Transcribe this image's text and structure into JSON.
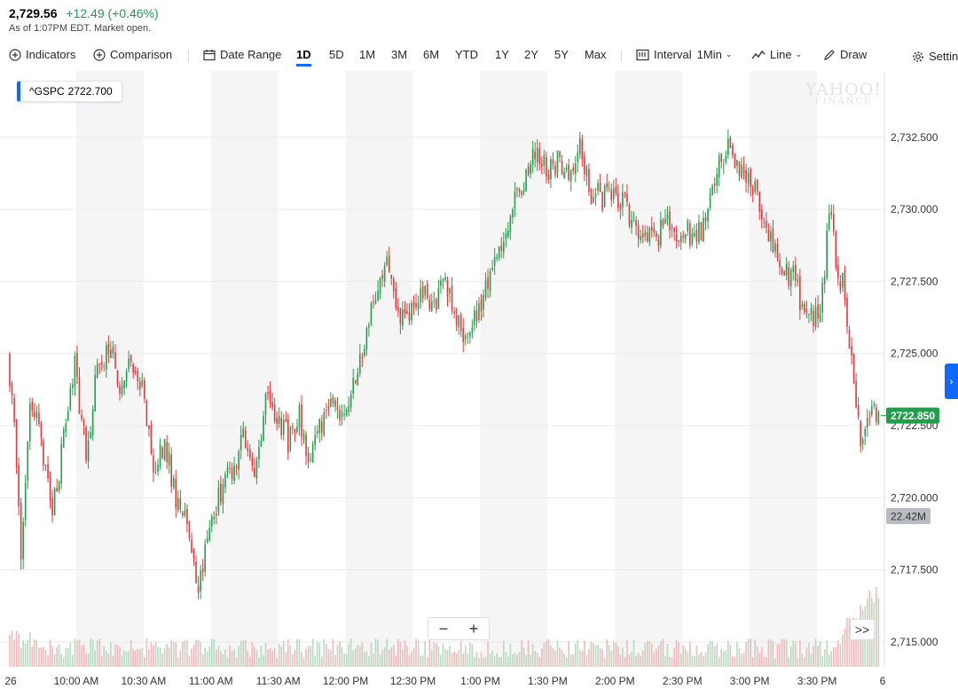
{
  "quote": {
    "price": "2,729.56",
    "change": "+12.49 (+0.46%)",
    "as_of": "As of 1:07PM EDT. Market open."
  },
  "toolbar": {
    "indicators": "Indicators",
    "comparison": "Comparison",
    "date_range": "Date Range",
    "ranges": [
      "1D",
      "5D",
      "1M",
      "3M",
      "6M",
      "YTD",
      "1Y",
      "2Y",
      "5Y",
      "Max"
    ],
    "active_range": "1D",
    "interval_label": "Interval",
    "interval_value": "1Min",
    "chart_type": "Line",
    "draw": "Draw",
    "settings": "Settings"
  },
  "legend": {
    "symbol": "^GSPC",
    "value": "2722.700"
  },
  "watermark": {
    "line1": "YAHOO!",
    "line2": "FINANCE"
  },
  "controls": {
    "zoom_out": "−",
    "zoom_in": "+",
    "next": ">>",
    "expand": "›"
  },
  "colors": {
    "up": "#21a04b",
    "down": "#e0393e",
    "accent": "#0f69ff",
    "current_price_bg": "#21a04b",
    "volume_badge_bg": "#b9bcc0"
  },
  "icons": {
    "indicators": "plus-circle-icon",
    "comparison": "plus-circle-icon",
    "date_range": "calendar-icon",
    "interval": "bar-chart-icon",
    "chart_type": "line-chart-icon",
    "draw": "pencil-icon",
    "settings": "gear-icon"
  },
  "chart_data": {
    "type": "candlestick",
    "symbol": "^GSPC",
    "interval": "1Min",
    "x_tick_labels": [
      "26",
      "10:00 AM",
      "10:30 AM",
      "11:00 AM",
      "11:30 AM",
      "12:00 PM",
      "12:30 PM",
      "1:00 PM",
      "1:30 PM",
      "2:00 PM",
      "2:30 PM",
      "3:00 PM",
      "3:30 PM",
      "6"
    ],
    "y_ticks": [
      2715.0,
      2717.5,
      2720.0,
      2722.5,
      2725.0,
      2727.5,
      2730.0,
      2732.5
    ],
    "y_tick_labels": [
      "2,715.000",
      "2,717.500",
      "2,720.000",
      "2,722.500",
      "2,725.000",
      "2,727.500",
      "2,730.000",
      "2,732.500"
    ],
    "ylim": [
      2714.2,
      2734.8
    ],
    "current_price": 2722.85,
    "current_price_label": "2722.850",
    "volume_label": "22.42M",
    "grid": true,
    "price_path": [
      [
        "9:30",
        2725.0
      ],
      [
        "9:33",
        2722.5
      ],
      [
        "9:36",
        2718.0
      ],
      [
        "9:40",
        2723.5
      ],
      [
        "9:45",
        2722.0
      ],
      [
        "9:50",
        2719.5
      ],
      [
        "9:55",
        2722.0
      ],
      [
        "10:00",
        2724.6
      ],
      [
        "10:05",
        2721.5
      ],
      [
        "10:10",
        2724.4
      ],
      [
        "10:15",
        2725.3
      ],
      [
        "10:20",
        2723.5
      ],
      [
        "10:25",
        2724.8
      ],
      [
        "10:30",
        2724.0
      ],
      [
        "10:35",
        2721.0
      ],
      [
        "10:40",
        2722.0
      ],
      [
        "10:45",
        2720.0
      ],
      [
        "10:50",
        2719.2
      ],
      [
        "10:55",
        2717.0
      ],
      [
        "11:00",
        2719.0
      ],
      [
        "11:05",
        2720.2
      ],
      [
        "11:10",
        2721.0
      ],
      [
        "11:15",
        2722.2
      ],
      [
        "11:20",
        2721.0
      ],
      [
        "11:25",
        2723.3
      ],
      [
        "11:30",
        2723.0
      ],
      [
        "11:35",
        2722.0
      ],
      [
        "11:40",
        2722.8
      ],
      [
        "11:45",
        2721.2
      ],
      [
        "11:50",
        2722.6
      ],
      [
        "11:55",
        2723.3
      ],
      [
        "12:00",
        2722.5
      ],
      [
        "12:05",
        2724.2
      ],
      [
        "12:10",
        2725.8
      ],
      [
        "12:15",
        2727.2
      ],
      [
        "12:20",
        2728.2
      ],
      [
        "12:25",
        2726.0
      ],
      [
        "12:30",
        2726.6
      ],
      [
        "12:35",
        2727.2
      ],
      [
        "12:40",
        2726.8
      ],
      [
        "12:45",
        2727.6
      ],
      [
        "12:50",
        2726.0
      ],
      [
        "12:55",
        2725.6
      ],
      [
        "13:00",
        2726.6
      ],
      [
        "13:05",
        2727.6
      ],
      [
        "13:10",
        2728.6
      ],
      [
        "13:15",
        2730.1
      ],
      [
        "13:20",
        2731.0
      ],
      [
        "13:25",
        2732.0
      ],
      [
        "13:30",
        2731.4
      ],
      [
        "13:35",
        2731.6
      ],
      [
        "13:40",
        2731.2
      ],
      [
        "13:45",
        2732.2
      ],
      [
        "13:50",
        2730.6
      ],
      [
        "13:55",
        2730.4
      ],
      [
        "14:00",
        2730.6
      ],
      [
        "14:05",
        2730.2
      ],
      [
        "14:10",
        2729.4
      ],
      [
        "14:15",
        2728.9
      ],
      [
        "14:20",
        2729.1
      ],
      [
        "14:25",
        2729.7
      ],
      [
        "14:30",
        2729.1
      ],
      [
        "14:35",
        2729.2
      ],
      [
        "14:40",
        2729.4
      ],
      [
        "14:45",
        2731.2
      ],
      [
        "14:50",
        2732.2
      ],
      [
        "14:55",
        2731.4
      ],
      [
        "15:00",
        2731.3
      ],
      [
        "15:05",
        2730.0
      ],
      [
        "15:10",
        2729.0
      ],
      [
        "15:15",
        2727.8
      ],
      [
        "15:20",
        2727.8
      ],
      [
        "15:25",
        2726.3
      ],
      [
        "15:30",
        2726.3
      ],
      [
        "15:33",
        2727.0
      ],
      [
        "15:36",
        2730.0
      ],
      [
        "15:40",
        2727.8
      ],
      [
        "15:43",
        2727.2
      ],
      [
        "15:46",
        2724.5
      ],
      [
        "15:50",
        2722.0
      ],
      [
        "15:53",
        2722.5
      ],
      [
        "15:56",
        2722.85
      ]
    ]
  }
}
